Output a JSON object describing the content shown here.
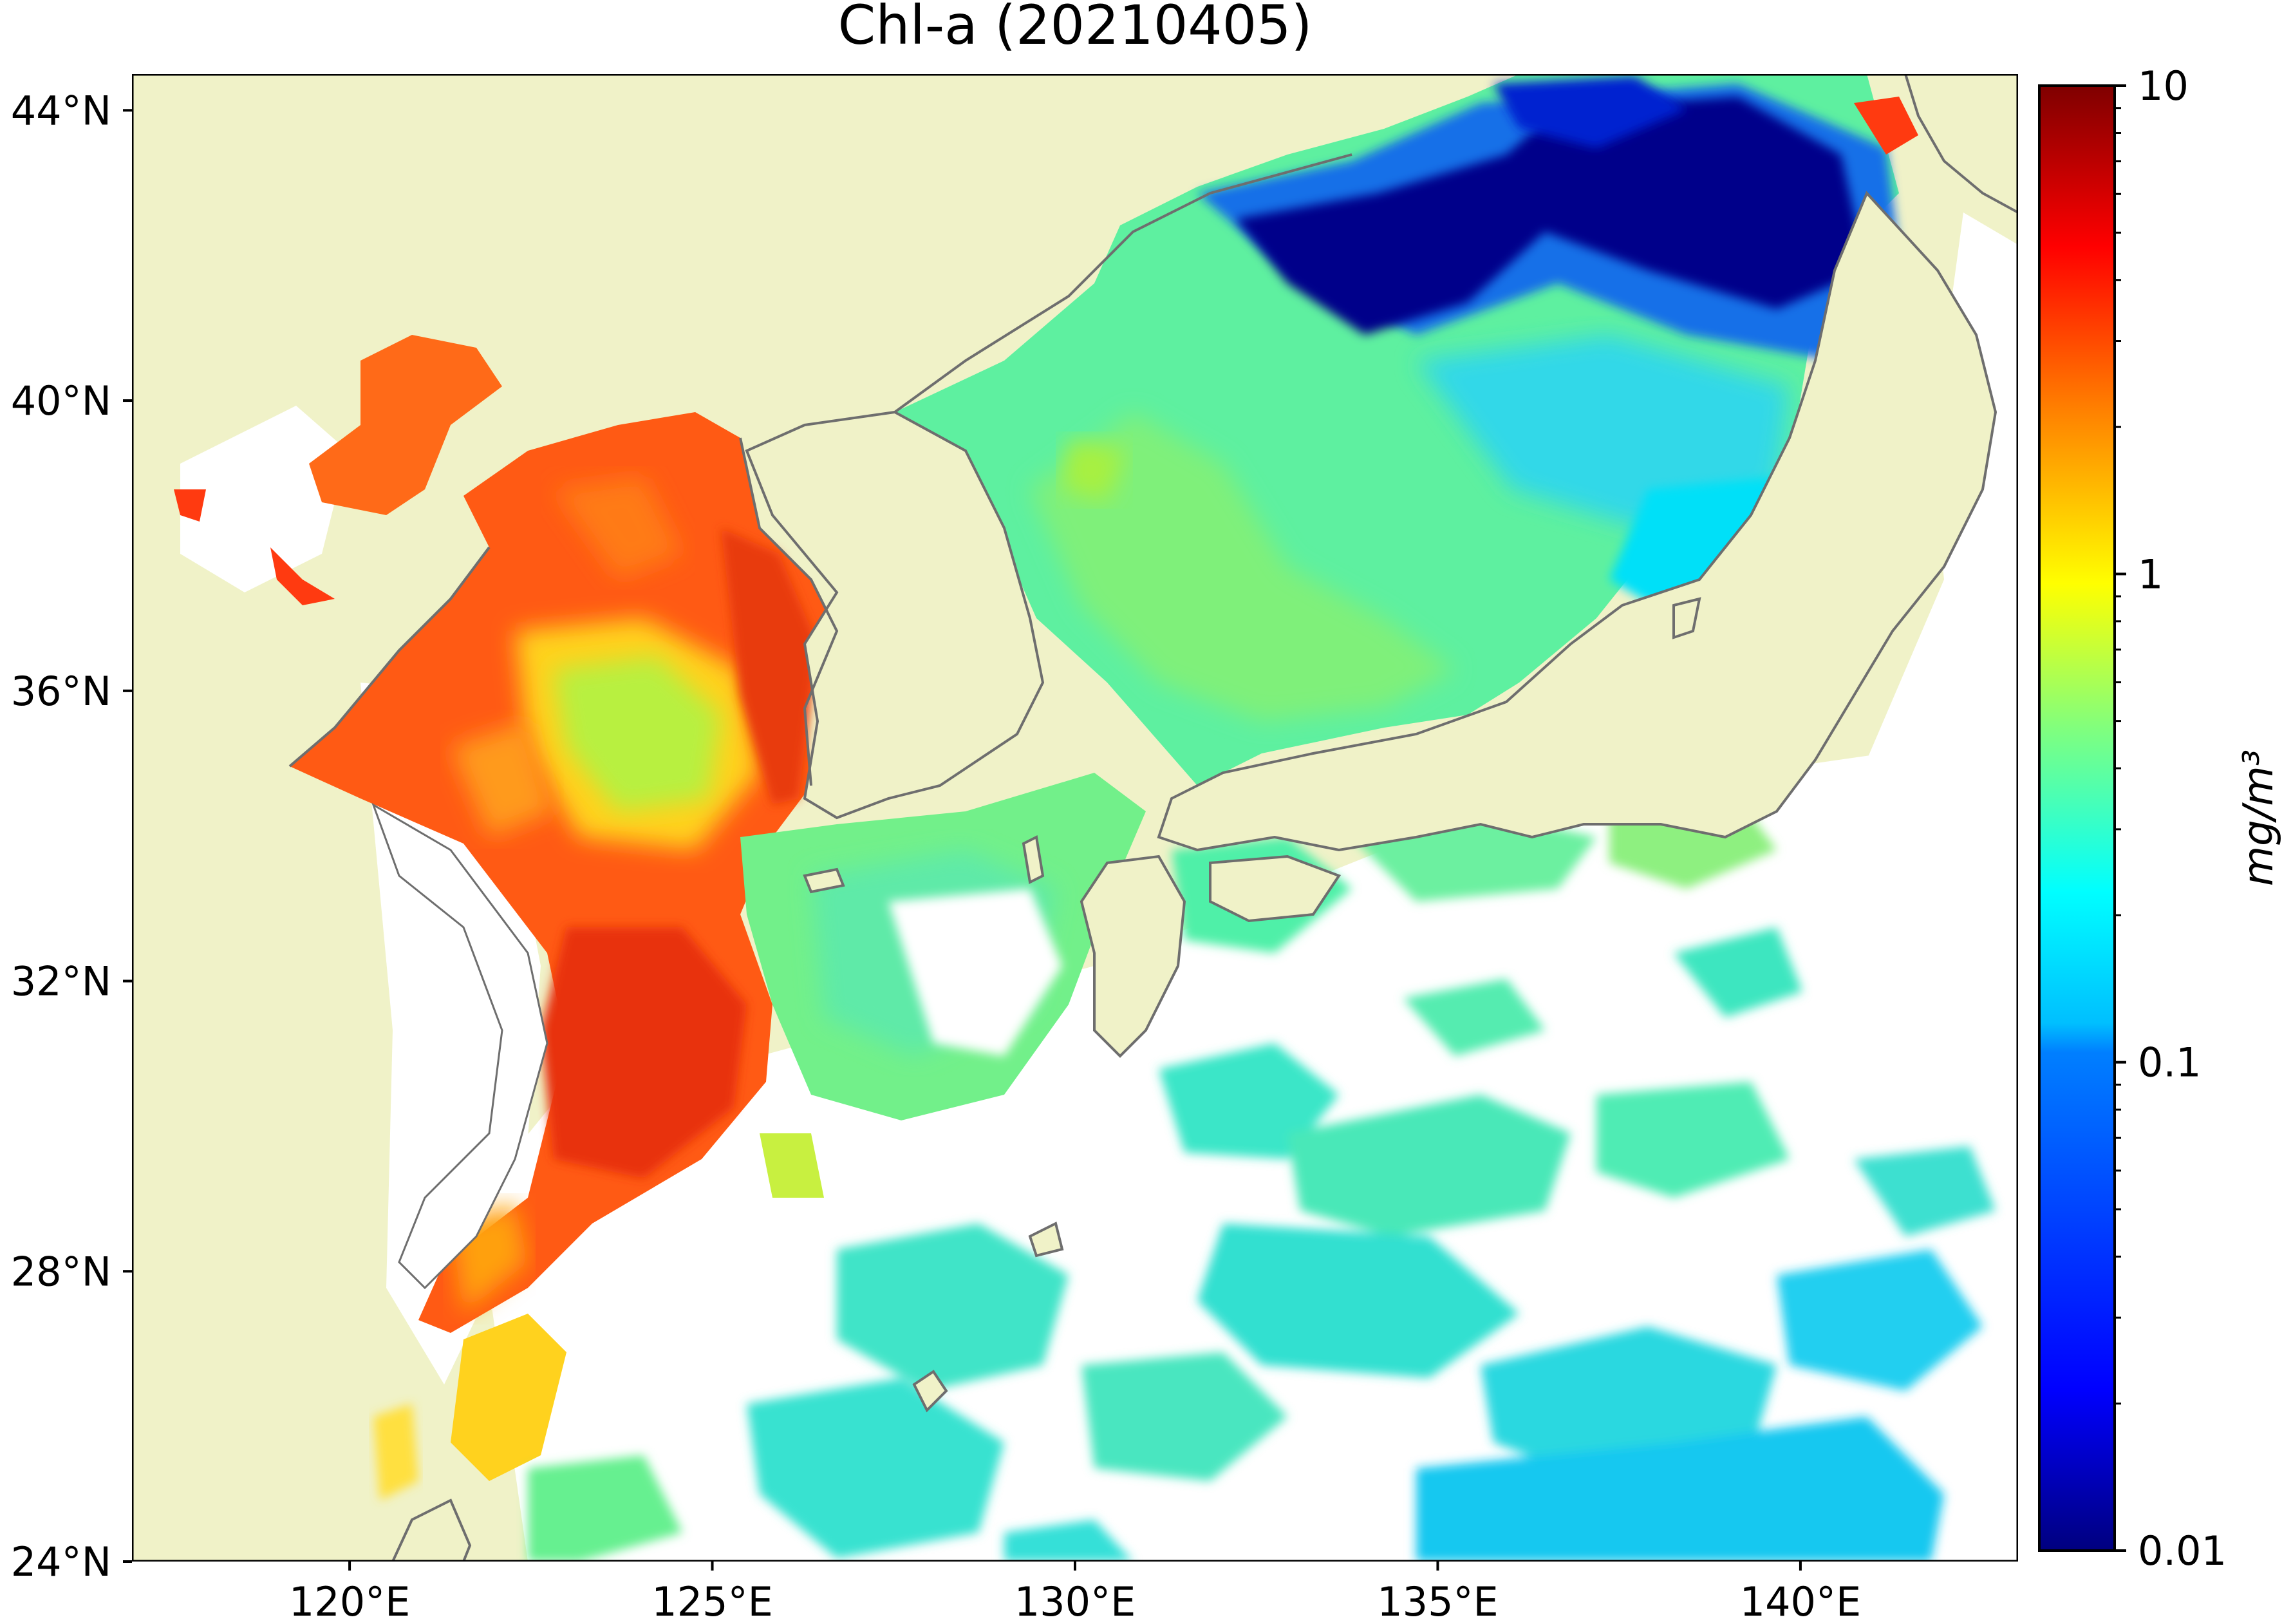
{
  "title": "Chl-a (20210405)",
  "map": {
    "lat_range": [
      24,
      44.5
    ],
    "lon_range": [
      117,
      143
    ],
    "lat_ticks": [
      {
        "value": 44,
        "label": "44°N"
      },
      {
        "value": 40,
        "label": "40°N"
      },
      {
        "value": 36,
        "label": "36°N"
      },
      {
        "value": 32,
        "label": "32°N"
      },
      {
        "value": 28,
        "label": "28°N"
      },
      {
        "value": 24,
        "label": "24°N"
      }
    ],
    "lon_ticks": [
      {
        "value": 120,
        "label": "120°E"
      },
      {
        "value": 125,
        "label": "125°E"
      },
      {
        "value": 130,
        "label": "130°E"
      },
      {
        "value": 135,
        "label": "135°E"
      },
      {
        "value": 140,
        "label": "140°E"
      }
    ],
    "colors": {
      "land": "#f0f2c8",
      "no_data": "#ffffff",
      "coastline": "#6e6e6e"
    }
  },
  "colorbar": {
    "label": "mg/m³",
    "scale": "log",
    "range": [
      0.01,
      10
    ],
    "ticks": [
      {
        "value": 10,
        "label": "10"
      },
      {
        "value": 1,
        "label": "1"
      },
      {
        "value": 0.1,
        "label": "0.1"
      },
      {
        "value": 0.01,
        "label": "0.01"
      }
    ],
    "colormap": "jet",
    "stops": [
      "#00007f",
      "#0000ff",
      "#007fff",
      "#00ffff",
      "#7fff7f",
      "#ffff00",
      "#ff7f00",
      "#ff0000",
      "#7f0000"
    ]
  }
}
